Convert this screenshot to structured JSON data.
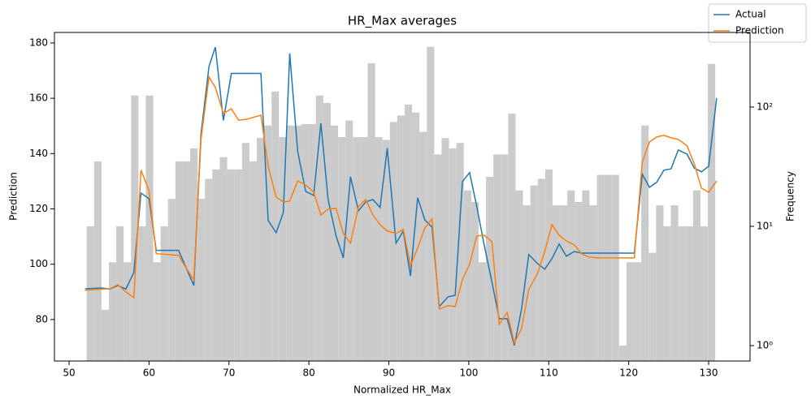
{
  "chart_data": [
    {
      "type": "histogram",
      "axis": "y2",
      "color": "#cbcbcb",
      "y2label": "Frequency",
      "log_y2": true,
      "y2lim": [
        0.743,
        422
      ],
      "y2ticks": [
        {
          "value": 1,
          "label": "10⁰"
        },
        {
          "value": 10,
          "label": "10¹"
        },
        {
          "value": 100,
          "label": "10²"
        }
      ],
      "bins": [
        52.2,
        53.125,
        54.05,
        54.975,
        55.9,
        56.825,
        57.75,
        58.675,
        59.6,
        60.525,
        61.45,
        62.375,
        63.3,
        64.225,
        65.15,
        66.075,
        67.0,
        67.925,
        68.85,
        69.775,
        70.7,
        71.625,
        72.55,
        73.475,
        74.4,
        75.325,
        76.25,
        77.175,
        78.1,
        79.025,
        79.95,
        80.875,
        81.8,
        82.725,
        83.65,
        84.575,
        85.5,
        86.425,
        87.35,
        88.275,
        89.2,
        90.125,
        91.05,
        91.975,
        92.9,
        93.825,
        94.75,
        95.675,
        96.6,
        97.525,
        98.45,
        99.375,
        100.3,
        101.225,
        102.15,
        103.075,
        104.0,
        104.925,
        105.85,
        106.775,
        107.7,
        108.625,
        109.55,
        110.475,
        111.4,
        112.325,
        113.25,
        114.175,
        115.1,
        116.025,
        116.95,
        117.875,
        118.8,
        119.725,
        120.65,
        121.575,
        122.5,
        123.425,
        124.35,
        125.275,
        126.2,
        127.125,
        128.05,
        128.975,
        129.9,
        130.825
      ],
      "counts": [
        10,
        35,
        2,
        5,
        10,
        5,
        125,
        10,
        125,
        5,
        10,
        17,
        35,
        35,
        45,
        17,
        25,
        30,
        38,
        30,
        30,
        50,
        35,
        55,
        70,
        135,
        56,
        70,
        70,
        72,
        72,
        125,
        108,
        70,
        56,
        77,
        56,
        56,
        233,
        56,
        53,
        75,
        85,
        105,
        90,
        62,
        320,
        40,
        55,
        45,
        50,
        20,
        16,
        5,
        26,
        40,
        40,
        88,
        20,
        15,
        22,
        25,
        30,
        15,
        15,
        20,
        16,
        20,
        15,
        27,
        27,
        27,
        1,
        5,
        5,
        70,
        6,
        15,
        10,
        15,
        10,
        10,
        20,
        10,
        230
      ]
    },
    {
      "type": "line",
      "title": "HR_Max averages",
      "xlabel": "Normalized HR_Max",
      "ylabel": "Prediction",
      "xlim": [
        48.17,
        135.18
      ],
      "xticks": [
        50,
        60,
        70,
        80,
        90,
        100,
        110,
        120,
        130
      ],
      "ylim": [
        65.0,
        183.8
      ],
      "yticks": [
        80,
        100,
        120,
        140,
        160,
        180
      ],
      "legend": "upper right",
      "x": [
        52.0,
        54.1,
        55.1,
        56.1,
        57.1,
        58.1,
        59.0,
        60.0,
        60.9,
        63.7,
        64.6,
        65.6,
        66.5,
        67.5,
        68.3,
        69.3,
        70.3,
        71.2,
        72.2,
        74.0,
        74.9,
        75.9,
        76.8,
        77.6,
        78.6,
        79.6,
        80.6,
        81.5,
        82.4,
        83.4,
        84.3,
        85.2,
        86.2,
        87.1,
        88.0,
        88.9,
        89.8,
        90.9,
        91.8,
        92.7,
        93.6,
        94.5,
        95.4,
        96.3,
        97.4,
        98.3,
        99.2,
        100.1,
        101.0,
        101.9,
        102.9,
        103.8,
        104.8,
        105.7,
        106.6,
        107.5,
        108.6,
        109.5,
        110.4,
        111.3,
        112.2,
        113.2,
        114.1,
        115.0,
        116.0,
        120.7,
        121.7,
        122.6,
        123.5,
        124.4,
        125.3,
        126.2,
        127.3,
        128.2,
        129.1,
        130.0,
        131.0
      ],
      "series": [
        {
          "name": "Actual",
          "color": "#1f77b4",
          "values": [
            91.1,
            91.4,
            91,
            92.3,
            91,
            97,
            125.7,
            123.7,
            105,
            105,
            99,
            92.3,
            147,
            171.5,
            178.5,
            152,
            169,
            169,
            169,
            169,
            115.8,
            111.4,
            118.7,
            176.2,
            140.7,
            126.3,
            124.9,
            151,
            123.4,
            110.2,
            102.3,
            131.6,
            119.3,
            122.5,
            123.4,
            120.5,
            141.9,
            107.6,
            112,
            95.8,
            124,
            116,
            113.4,
            84.7,
            88.2,
            88.8,
            129.9,
            133.1,
            120.8,
            107.3,
            93.5,
            80.3,
            80.3,
            70.6,
            83.8,
            103.5,
            100.2,
            98.2,
            102,
            107.3,
            102.9,
            104.6,
            104,
            104,
            104,
            104,
            132.5,
            127.8,
            129.6,
            134,
            134.5,
            141.3,
            139.8,
            134.8,
            133.4,
            135.4,
            160.1
          ]
        },
        {
          "name": "Prediction",
          "color": "#ff7f0e",
          "values": [
            90.6,
            91,
            91.1,
            92.6,
            90,
            87.9,
            134,
            126.6,
            103.8,
            103.2,
            98.8,
            94.4,
            145.1,
            167.7,
            163.9,
            154.5,
            156.2,
            152.1,
            152.4,
            153.9,
            135.4,
            124.3,
            122.5,
            122.8,
            130.1,
            128.7,
            126,
            117.8,
            119.9,
            120.2,
            111.1,
            107.6,
            120.8,
            123.4,
            117.8,
            114.3,
            112,
            111.1,
            112.6,
            99.4,
            105.8,
            113.1,
            116.4,
            83.8,
            85,
            84.7,
            94.4,
            100,
            110.2,
            110.5,
            108.2,
            78.2,
            82.6,
            71.5,
            76.8,
            90.9,
            96.7,
            104.6,
            114.3,
            110.5,
            108.4,
            107,
            103.8,
            102.6,
            102.3,
            102.3,
            136.9,
            144.2,
            146,
            146.6,
            145.7,
            145.1,
            142.8,
            136.3,
            127.5,
            126,
            130.1
          ]
        }
      ]
    }
  ]
}
